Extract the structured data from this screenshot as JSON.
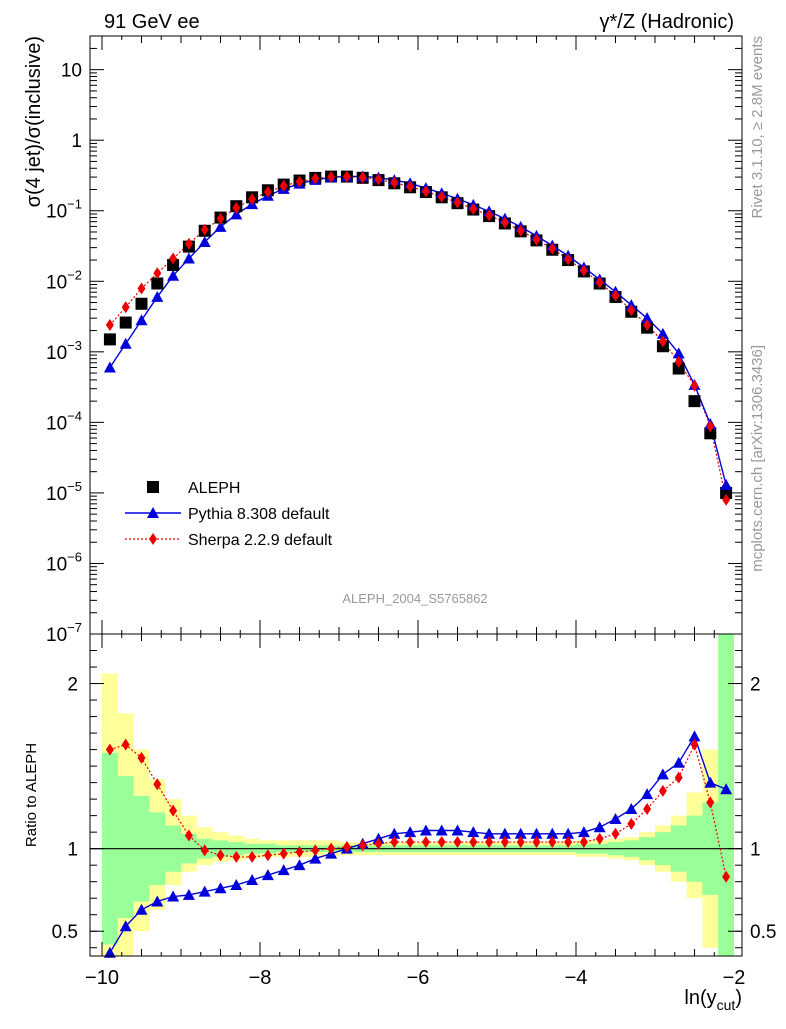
{
  "header": {
    "left": "91 GeV ee",
    "right": "γ*/Z (Hadronic)"
  },
  "side": {
    "top": "Rivet 3.1.10, ≥ 2.8M events",
    "bottom": "mcplots.cern.ch [arXiv:1306.3436]"
  },
  "chart_data": {
    "type": "scatter",
    "analysis_label": "ALEPH_2004_S5765862",
    "xlabel": "ln(y_cut)",
    "ylabel": "σ(4 jet)/σ(inclusive)",
    "ratio_ylabel": "Ratio to ALEPH",
    "xlim": [
      -10.0,
      -2.0
    ],
    "ylim": [
      1e-07,
      30
    ],
    "yscale": "log",
    "ratio_ylim": [
      0.35,
      2.3
    ],
    "x_ticks": [
      "−10",
      "−8",
      "−6",
      "−4",
      "−2"
    ],
    "legend_position": "lower-left",
    "x": [
      -9.9,
      -9.7,
      -9.5,
      -9.3,
      -9.1,
      -8.9,
      -8.7,
      -8.5,
      -8.3,
      -8.1,
      -7.9,
      -7.7,
      -7.5,
      -7.3,
      -7.1,
      -6.9,
      -6.7,
      -6.5,
      -6.3,
      -6.1,
      -5.9,
      -5.7,
      -5.5,
      -5.3,
      -5.1,
      -4.9,
      -4.7,
      -4.5,
      -4.3,
      -4.1,
      -3.9,
      -3.7,
      -3.5,
      -3.3,
      -3.1,
      -2.9,
      -2.7,
      -2.5,
      -2.3,
      -2.1
    ],
    "series": [
      {
        "name": "ALEPH",
        "color": "#000000",
        "marker": "square",
        "values": [
          0.0015,
          0.0026,
          0.0048,
          0.0093,
          0.017,
          0.031,
          0.052,
          0.08,
          0.116,
          0.155,
          0.195,
          0.235,
          0.268,
          0.292,
          0.305,
          0.305,
          0.293,
          0.272,
          0.245,
          0.215,
          0.184,
          0.155,
          0.128,
          0.104,
          0.084,
          0.066,
          0.051,
          0.038,
          0.028,
          0.02,
          0.0138,
          0.0093,
          0.006,
          0.0037,
          0.0022,
          0.0012,
          0.00058,
          0.0002,
          7e-05,
          1e-05
        ]
      },
      {
        "name": "Pythia 8.308 default",
        "color": "#0000dd",
        "marker": "triangle",
        "values": [
          0.0006,
          0.0013,
          0.0028,
          0.006,
          0.012,
          0.021,
          0.036,
          0.059,
          0.089,
          0.124,
          0.163,
          0.204,
          0.242,
          0.274,
          0.297,
          0.306,
          0.306,
          0.295,
          0.272,
          0.245,
          0.209,
          0.177,
          0.148,
          0.121,
          0.098,
          0.077,
          0.059,
          0.044,
          0.032,
          0.023,
          0.0157,
          0.0106,
          0.0071,
          0.0046,
          0.003,
          0.0018,
          0.00095,
          0.00034,
          9.5e-05,
          1.3e-05
        ]
      },
      {
        "name": "Sherpa 2.2.9 default",
        "color": "#ee0000",
        "marker": "diamond",
        "values": [
          0.0024,
          0.0043,
          0.0079,
          0.013,
          0.021,
          0.034,
          0.054,
          0.077,
          0.11,
          0.146,
          0.185,
          0.225,
          0.259,
          0.286,
          0.302,
          0.305,
          0.296,
          0.278,
          0.25,
          0.22,
          0.188,
          0.158,
          0.131,
          0.106,
          0.086,
          0.068,
          0.052,
          0.039,
          0.029,
          0.0205,
          0.0142,
          0.0096,
          0.0063,
          0.0039,
          0.0024,
          0.0014,
          0.00072,
          0.00033,
          8.8e-05,
          8e-06
        ]
      }
    ],
    "ratio": {
      "pythia": [
        0.37,
        0.53,
        0.63,
        0.68,
        0.71,
        0.72,
        0.74,
        0.76,
        0.78,
        0.81,
        0.84,
        0.87,
        0.9,
        0.94,
        0.97,
        1.0,
        1.03,
        1.06,
        1.09,
        1.1,
        1.11,
        1.11,
        1.11,
        1.1,
        1.09,
        1.09,
        1.09,
        1.09,
        1.09,
        1.09,
        1.1,
        1.13,
        1.18,
        1.24,
        1.33,
        1.45,
        1.52,
        1.68,
        1.4,
        1.36
      ],
      "sherpa": [
        1.6,
        1.63,
        1.55,
        1.39,
        1.23,
        1.08,
        0.99,
        0.96,
        0.95,
        0.95,
        0.96,
        0.97,
        0.98,
        0.99,
        1.0,
        1.01,
        1.02,
        1.03,
        1.04,
        1.04,
        1.04,
        1.04,
        1.04,
        1.04,
        1.04,
        1.04,
        1.04,
        1.04,
        1.04,
        1.04,
        1.04,
        1.06,
        1.09,
        1.15,
        1.24,
        1.35,
        1.43,
        1.63,
        1.28,
        0.83
      ],
      "band_inner": [
        [
          0.42,
          1.58
        ],
        [
          0.58,
          1.44
        ],
        [
          0.68,
          1.32
        ],
        [
          0.78,
          1.22
        ],
        [
          0.86,
          1.14
        ],
        [
          0.91,
          1.09
        ],
        [
          0.94,
          1.06
        ],
        [
          0.95,
          1.05
        ],
        [
          0.96,
          1.04
        ],
        [
          0.97,
          1.03
        ],
        [
          0.97,
          1.03
        ],
        [
          0.98,
          1.02
        ],
        [
          0.98,
          1.02
        ],
        [
          0.98,
          1.02
        ],
        [
          0.98,
          1.02
        ],
        [
          0.98,
          1.02
        ],
        [
          0.98,
          1.02
        ],
        [
          0.98,
          1.02
        ],
        [
          0.98,
          1.02
        ],
        [
          0.98,
          1.02
        ],
        [
          0.98,
          1.02
        ],
        [
          0.98,
          1.02
        ],
        [
          0.98,
          1.02
        ],
        [
          0.98,
          1.02
        ],
        [
          0.98,
          1.02
        ],
        [
          0.98,
          1.02
        ],
        [
          0.98,
          1.02
        ],
        [
          0.98,
          1.02
        ],
        [
          0.98,
          1.02
        ],
        [
          0.98,
          1.02
        ],
        [
          0.97,
          1.03
        ],
        [
          0.97,
          1.03
        ],
        [
          0.96,
          1.04
        ],
        [
          0.95,
          1.05
        ],
        [
          0.93,
          1.07
        ],
        [
          0.9,
          1.1
        ],
        [
          0.86,
          1.14
        ],
        [
          0.8,
          1.2
        ],
        [
          0.72,
          1.28
        ],
        [
          0.35,
          2.3
        ]
      ],
      "band_outer": [
        [
          0.35,
          2.06
        ],
        [
          0.35,
          1.82
        ],
        [
          0.5,
          1.6
        ],
        [
          0.63,
          1.42
        ],
        [
          0.78,
          1.3
        ],
        [
          0.86,
          1.2
        ],
        [
          0.9,
          1.13
        ],
        [
          0.92,
          1.1
        ],
        [
          0.93,
          1.08
        ],
        [
          0.94,
          1.06
        ],
        [
          0.95,
          1.05
        ],
        [
          0.95,
          1.05
        ],
        [
          0.95,
          1.05
        ],
        [
          0.95,
          1.05
        ],
        [
          0.95,
          1.05
        ],
        [
          0.96,
          1.04
        ],
        [
          0.96,
          1.04
        ],
        [
          0.96,
          1.04
        ],
        [
          0.96,
          1.04
        ],
        [
          0.96,
          1.04
        ],
        [
          0.96,
          1.04
        ],
        [
          0.96,
          1.04
        ],
        [
          0.96,
          1.04
        ],
        [
          0.96,
          1.04
        ],
        [
          0.96,
          1.04
        ],
        [
          0.96,
          1.04
        ],
        [
          0.96,
          1.04
        ],
        [
          0.96,
          1.04
        ],
        [
          0.96,
          1.04
        ],
        [
          0.96,
          1.04
        ],
        [
          0.95,
          1.05
        ],
        [
          0.95,
          1.05
        ],
        [
          0.94,
          1.06
        ],
        [
          0.93,
          1.07
        ],
        [
          0.9,
          1.1
        ],
        [
          0.86,
          1.14
        ],
        [
          0.8,
          1.2
        ],
        [
          0.7,
          1.34
        ],
        [
          0.4,
          1.6
        ],
        [
          0.35,
          2.3
        ]
      ]
    }
  }
}
